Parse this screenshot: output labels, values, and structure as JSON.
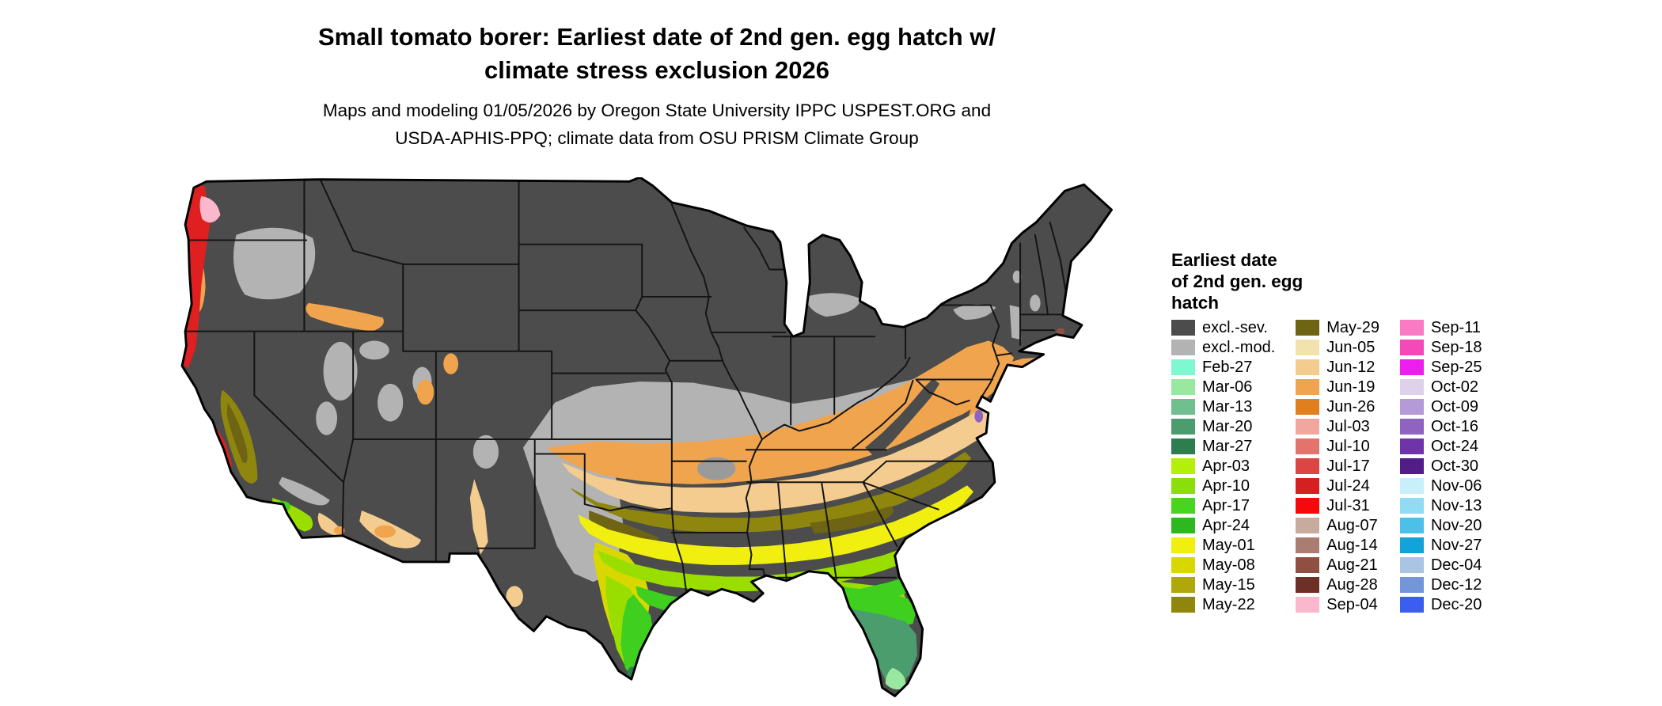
{
  "title": {
    "line1": "Small tomato borer: Earliest date of 2nd gen. egg hatch w/",
    "line2": "climate stress exclusion 2026"
  },
  "subtitle": {
    "line1": "Maps and modeling 01/05/2026 by Oregon State University IPPC USPEST.ORG and",
    "line2": "USDA-APHIS-PPQ; climate data from OSU PRISM Climate Group"
  },
  "map": {
    "area": "Contiguous United States choropleth of earliest 2nd generation egg hatch dates"
  },
  "legend": {
    "title_lines": [
      "Earliest date",
      "of 2nd gen. egg",
      "hatch"
    ],
    "columns": [
      [
        {
          "label": "excl.-sev.",
          "color": "#4c4c4c"
        },
        {
          "label": "excl.-mod.",
          "color": "#b3b3b3"
        },
        {
          "label": "Feb-27",
          "color": "#7ff8cf"
        },
        {
          "label": "Mar-06",
          "color": "#98e89f"
        },
        {
          "label": "Mar-13",
          "color": "#6fc08e"
        },
        {
          "label": "Mar-20",
          "color": "#4c9d6d"
        },
        {
          "label": "Mar-27",
          "color": "#2e7d4f"
        },
        {
          "label": "Apr-03",
          "color": "#b4ef0a"
        },
        {
          "label": "Apr-10",
          "color": "#8ade0a"
        },
        {
          "label": "Apr-17",
          "color": "#46d61e"
        },
        {
          "label": "Apr-24",
          "color": "#2cb81e"
        },
        {
          "label": "May-01",
          "color": "#f0ef0f"
        },
        {
          "label": "May-08",
          "color": "#d8d800"
        },
        {
          "label": "May-15",
          "color": "#b0a70c"
        },
        {
          "label": "May-22",
          "color": "#8f860e"
        }
      ],
      [
        {
          "label": "May-29",
          "color": "#6e6414"
        },
        {
          "label": "Jun-05",
          "color": "#f2e3ae"
        },
        {
          "label": "Jun-12",
          "color": "#f5cc8f"
        },
        {
          "label": "Jun-19",
          "color": "#f0a44e"
        },
        {
          "label": "Jun-26",
          "color": "#e07f1e"
        },
        {
          "label": "Jul-03",
          "color": "#f2a79e"
        },
        {
          "label": "Jul-10",
          "color": "#e4736e"
        },
        {
          "label": "Jul-17",
          "color": "#dd4444"
        },
        {
          "label": "Jul-24",
          "color": "#d42020"
        },
        {
          "label": "Jul-31",
          "color": "#f60909"
        },
        {
          "label": "Aug-07",
          "color": "#c9aa9e"
        },
        {
          "label": "Aug-14",
          "color": "#ab7d72"
        },
        {
          "label": "Aug-21",
          "color": "#8f4f42"
        },
        {
          "label": "Aug-28",
          "color": "#6e2f26"
        },
        {
          "label": "Sep-04",
          "color": "#fbb8cd"
        }
      ],
      [
        {
          "label": "Sep-11",
          "color": "#f87bc4"
        },
        {
          "label": "Sep-18",
          "color": "#f549b8"
        },
        {
          "label": "Sep-25",
          "color": "#ee1eee"
        },
        {
          "label": "Oct-02",
          "color": "#ddd2ea"
        },
        {
          "label": "Oct-09",
          "color": "#b49ad6"
        },
        {
          "label": "Oct-16",
          "color": "#8f63c0"
        },
        {
          "label": "Oct-24",
          "color": "#6f35a8"
        },
        {
          "label": "Oct-30",
          "color": "#521d86"
        },
        {
          "label": "Nov-06",
          "color": "#c8f0fa"
        },
        {
          "label": "Nov-13",
          "color": "#90dcf2"
        },
        {
          "label": "Nov-20",
          "color": "#4cc0e8"
        },
        {
          "label": "Nov-27",
          "color": "#12a4d8"
        },
        {
          "label": "Dec-04",
          "color": "#aac4e4"
        },
        {
          "label": "Dec-12",
          "color": "#7396d8"
        },
        {
          "label": "Dec-20",
          "color": "#3c5ef0"
        }
      ]
    ]
  }
}
